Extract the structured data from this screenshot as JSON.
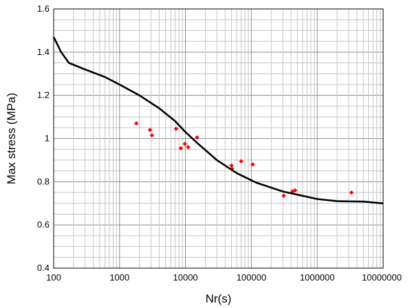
{
  "chart_data": {
    "type": "scatter",
    "title": "",
    "xlabel": "Nr(s)",
    "ylabel": "Max stress (MPa)",
    "x_scale": "log",
    "xlim": [
      100,
      10000000
    ],
    "ylim": [
      0.4,
      1.6
    ],
    "grid": true,
    "x_tick_labels": [
      "100",
      "1000",
      "10000",
      "100000",
      "1000000",
      "10000000"
    ],
    "y_tick_labels": [
      "0.4",
      "0.6",
      "0.8",
      "1",
      "1.2",
      "1.4",
      "1.6"
    ],
    "series": [
      {
        "kind": "scatter",
        "color": "#ff0000",
        "points": [
          [
            1800,
            1.07
          ],
          [
            2900,
            1.04
          ],
          [
            3100,
            1.015
          ],
          [
            7200,
            1.045
          ],
          [
            8500,
            0.955
          ],
          [
            9800,
            0.975
          ],
          [
            11000,
            0.96
          ],
          [
            15000,
            1.005
          ],
          [
            50000,
            0.875
          ],
          [
            51000,
            0.86
          ],
          [
            70000,
            0.895
          ],
          [
            105000,
            0.88
          ],
          [
            310000,
            0.735
          ],
          [
            420000,
            0.755
          ],
          [
            460000,
            0.76
          ],
          [
            3300000,
            0.75
          ]
        ]
      },
      {
        "kind": "line",
        "color": "#000000",
        "points": [
          [
            100,
            1.47
          ],
          [
            130,
            1.4
          ],
          [
            170,
            1.35
          ],
          [
            300,
            1.32
          ],
          [
            600,
            1.285
          ],
          [
            1000,
            1.25
          ],
          [
            2000,
            1.2
          ],
          [
            4000,
            1.14
          ],
          [
            7000,
            1.08
          ],
          [
            10000,
            1.03
          ],
          [
            15000,
            0.98
          ],
          [
            30000,
            0.9
          ],
          [
            60000,
            0.84
          ],
          [
            120000,
            0.795
          ],
          [
            300000,
            0.755
          ],
          [
            600000,
            0.735
          ],
          [
            1000000,
            0.72
          ],
          [
            2000000,
            0.71
          ],
          [
            5000000,
            0.708
          ],
          [
            10000000,
            0.7
          ]
        ]
      }
    ]
  }
}
